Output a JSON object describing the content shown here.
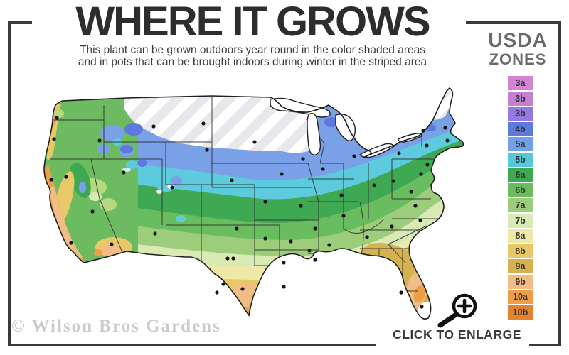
{
  "header": {
    "title": "WHERE IT GROWS",
    "subtitle_line1": "This plant can be grown outdoors year round in the color shaded areas",
    "subtitle_line2": "and in pots that can be brought indoors during winter in the striped area"
  },
  "legend": {
    "title_line1": "USDA",
    "title_line2": "ZONES",
    "zones": [
      {
        "label": "3a",
        "color": "#d583d5"
      },
      {
        "label": "3b",
        "color": "#c77fd2"
      },
      {
        "label": "3b",
        "color": "#9578e2"
      },
      {
        "label": "4b",
        "color": "#5d79de"
      },
      {
        "label": "5a",
        "color": "#74a0e8"
      },
      {
        "label": "5b",
        "color": "#55c8da"
      },
      {
        "label": "6a",
        "color": "#3fa853"
      },
      {
        "label": "6b",
        "color": "#69bd5f"
      },
      {
        "label": "7a",
        "color": "#9ccd7a"
      },
      {
        "label": "7b",
        "color": "#d9eab4"
      },
      {
        "label": "8a",
        "color": "#efe8a8"
      },
      {
        "label": "8b",
        "color": "#e9c967"
      },
      {
        "label": "9a",
        "color": "#d5b150"
      },
      {
        "label": "9b",
        "color": "#f1bd86"
      },
      {
        "label": "10a",
        "color": "#ee9e48"
      },
      {
        "label": "10b",
        "color": "#e2832f"
      }
    ]
  },
  "map": {
    "watermark": "© Wilson Bros Gardens"
  },
  "footer": {
    "cta": "CLICK TO ENLARGE"
  },
  "colors": {
    "frame": "#3a3a3a",
    "title_text": "#2d2d2d",
    "legend_title_text": "#6a6a6a",
    "watermark_text": "#cbcbcb"
  }
}
